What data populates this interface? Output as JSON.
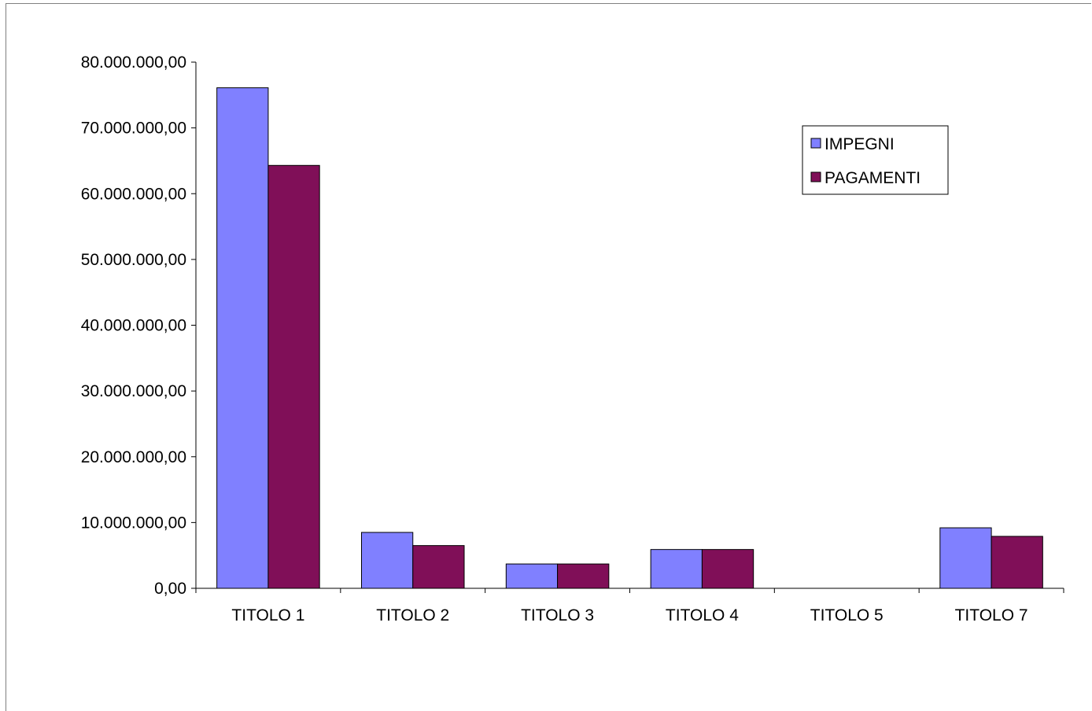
{
  "chart_data": {
    "type": "bar",
    "categories": [
      "TITOLO 1",
      "TITOLO 2",
      "TITOLO 3",
      "TITOLO 4",
      "TITOLO 5",
      "TITOLO 7"
    ],
    "series": [
      {
        "name": "IMPEGNI",
        "color": "#8080ff",
        "values": [
          76100000,
          8500000,
          3700000,
          5900000,
          0,
          9200000
        ]
      },
      {
        "name": "PAGAMENTI",
        "color": "#800f58",
        "values": [
          64300000,
          6500000,
          3700000,
          5900000,
          0,
          7900000
        ]
      }
    ],
    "ylim": [
      0,
      80000000
    ],
    "yticks": [
      "0,00",
      "10.000.000,00",
      "20.000.000,00",
      "30.000.000,00",
      "40.000.000,00",
      "50.000.000,00",
      "60.000.000,00",
      "70.000.000,00",
      "80.000.000,00"
    ],
    "title": "",
    "xlabel": "",
    "ylabel": "",
    "grid": false,
    "legend_position": "top-right"
  }
}
